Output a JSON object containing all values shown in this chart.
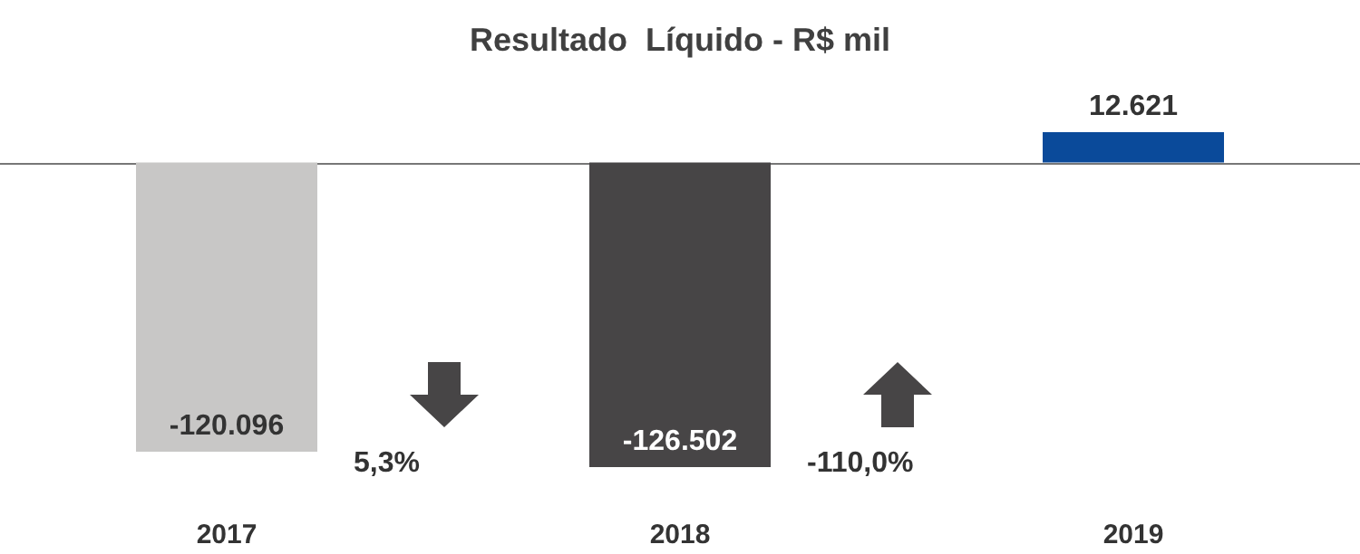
{
  "chart_data": {
    "type": "bar",
    "title": "Resultado  Líquido - R$ mil",
    "categories": [
      "2017",
      "2018",
      "2019"
    ],
    "values": [
      -120096,
      -126502,
      12621
    ],
    "colors": [
      "#c8c7c6",
      "#474546",
      "#0a4a9a"
    ],
    "value_labels": [
      "-120.096",
      "-126.502",
      "12.621"
    ],
    "annotations": [
      "5,3%",
      "-110,0%"
    ]
  }
}
